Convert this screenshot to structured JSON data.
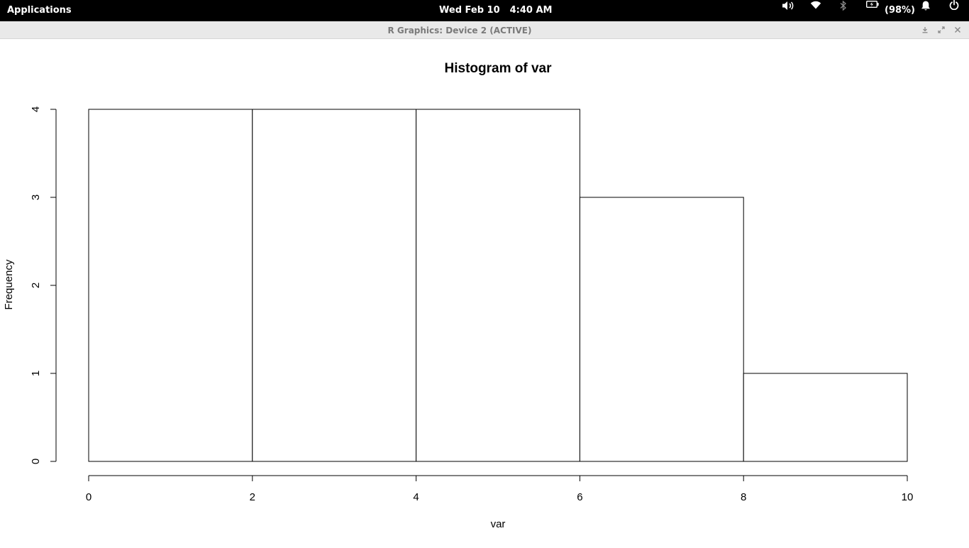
{
  "top_panel": {
    "applications_label": "Applications",
    "date": "Wed Feb 10",
    "time": "4:40 AM",
    "battery_percent": "(98%)",
    "tray_icons": [
      "volume-icon",
      "wifi-icon",
      "bluetooth-icon",
      "battery-icon",
      "notification-bell-icon",
      "power-icon"
    ]
  },
  "window": {
    "title": "R Graphics: Device 2 (ACTIVE)",
    "controls": [
      "minimize-icon",
      "maximize-icon",
      "close-icon"
    ]
  },
  "chart_data": {
    "type": "bar",
    "title": "Histogram of var",
    "xlabel": "var",
    "ylabel": "Frequency",
    "bins": [
      {
        "from": 0,
        "to": 2,
        "count": 4
      },
      {
        "from": 2,
        "to": 4,
        "count": 4
      },
      {
        "from": 4,
        "to": 6,
        "count": 4
      },
      {
        "from": 6,
        "to": 8,
        "count": 3
      },
      {
        "from": 8,
        "to": 10,
        "count": 1
      }
    ],
    "xlim": [
      0,
      10
    ],
    "ylim": [
      0,
      4
    ],
    "xticks": [
      "0",
      "2",
      "4",
      "6",
      "8",
      "10"
    ],
    "yticks": [
      "0",
      "1",
      "2",
      "3",
      "4"
    ],
    "grid": false,
    "colors": {
      "bar_fill": "#ffffff",
      "bar_stroke": "#000000"
    }
  }
}
